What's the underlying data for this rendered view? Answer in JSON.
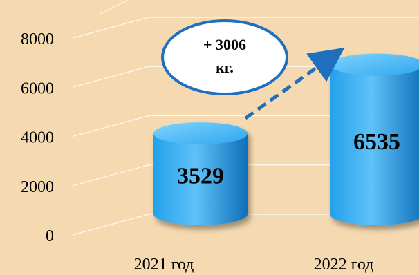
{
  "chart_data": {
    "type": "bar",
    "categories": [
      "2021 год",
      "2022 год"
    ],
    "values": [
      3529,
      6535
    ],
    "data_labels": [
      "3529",
      "6535"
    ],
    "yticks": [
      "0",
      "2000",
      "4000",
      "6000",
      "8000"
    ],
    "ylim": [
      0,
      8000
    ],
    "grid": true,
    "style": "3d-cylinder",
    "annotation": {
      "line1": "+ 3006",
      "line2": "кг."
    },
    "colors": {
      "background": "#f5d9b0",
      "bar_light": "#5fc1f7",
      "bar_mid": "#23a1eb",
      "bar_dark": "#0f70b8",
      "arrow": "#1f6fbf",
      "callout_border": "#1f6fbf",
      "gridline": "#ffffff"
    }
  }
}
